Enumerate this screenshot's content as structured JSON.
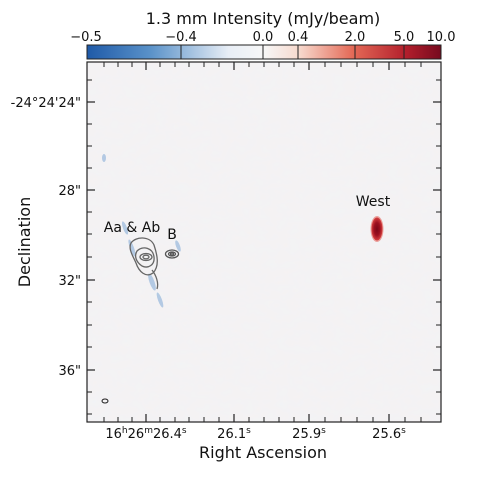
{
  "figure": {
    "colorbar": {
      "label": "1.3 mm Intensity (mJy/beam)",
      "ticks": [
        "−0.5",
        "−0.4",
        "0.0",
        "0.4",
        "2.0",
        "5.0",
        "10.0"
      ],
      "colors": [
        "#2f66b3",
        "#9bbcda",
        "#f7f7f7",
        "#f4b9a2",
        "#d85c4d",
        "#a31a26",
        "#7b0b1f"
      ]
    },
    "axes": {
      "xlabel": "Right Ascension",
      "ylabel": "Declination",
      "xticks": {
        "t1_h": "16",
        "t1_hu": "h",
        "t1_m": "26",
        "t1_mu": "m",
        "t1_s": "26.4",
        "t1_su": "s",
        "t2": "26.1",
        "t2_su": "s",
        "t3": "25.9",
        "t3_su": "s",
        "t4": "25.6",
        "t4_su": "s"
      },
      "yticks": {
        "t1": "-24°24'24\"",
        "t2": "28\"",
        "t3": "32\"",
        "t4": "36\""
      }
    },
    "labels": {
      "aa_ab": "Aa & Ab",
      "b": "B",
      "west": "West"
    }
  }
}
